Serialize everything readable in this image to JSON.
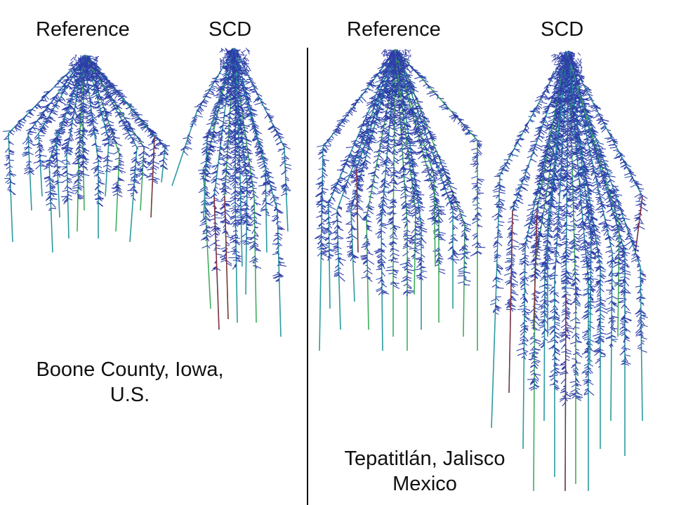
{
  "panels": {
    "left": {
      "columns": [
        "Reference",
        "SCD"
      ],
      "location_line1": "Boone County, Iowa,",
      "location_line2": "U.S."
    },
    "right": {
      "columns": [
        "Reference",
        "SCD"
      ],
      "location_line1": "Tepatitlán, Jalisco",
      "location_line2": "Mexico"
    }
  },
  "colors": {
    "root_branch": "#2f3ba8",
    "root_dense": "#2a56b0",
    "axial_root": "#2a9aa0",
    "axial_root_green": "#3fae5a",
    "root_tip": "#8e2a3a",
    "divider": "#111111"
  }
}
